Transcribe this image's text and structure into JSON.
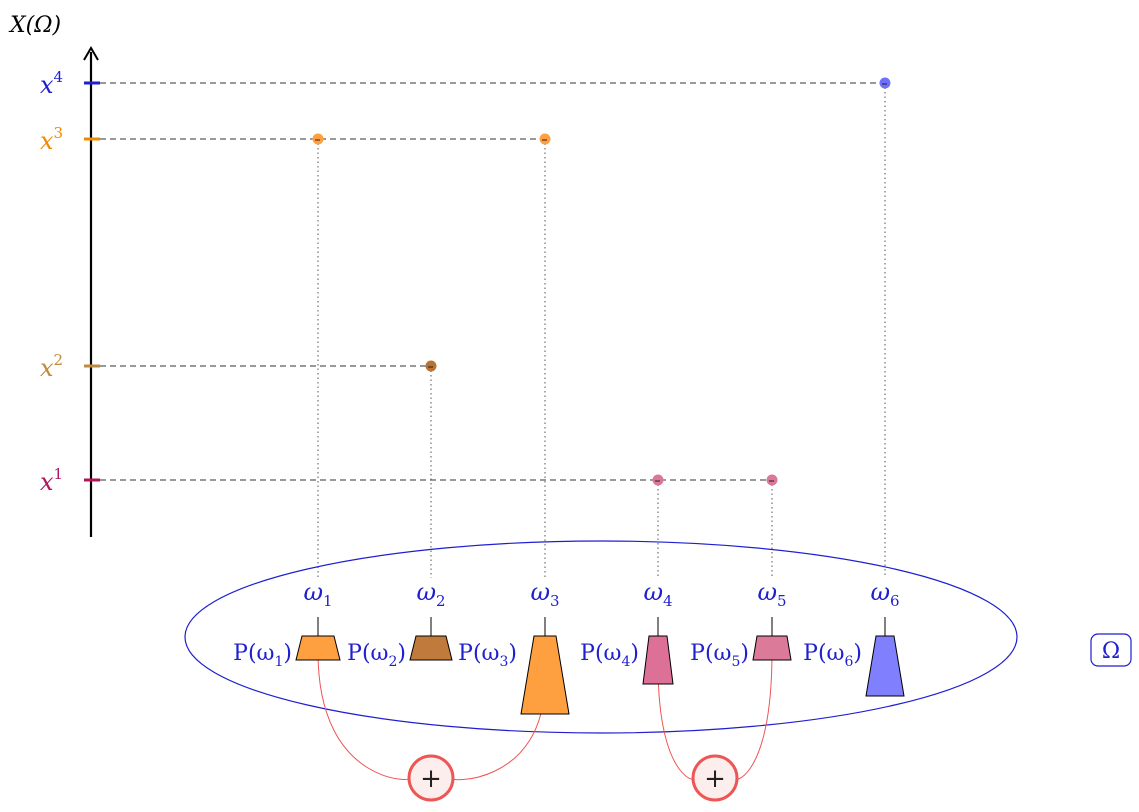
{
  "axis": {
    "label": "X(Ω)",
    "levels": [
      {
        "label": "x",
        "exp": "1",
        "color": "#b0145a",
        "points_color": "#d9789c"
      },
      {
        "label": "x",
        "exp": "2",
        "color": "#c08a3e",
        "points_color": "#b87333"
      },
      {
        "label": "x",
        "exp": "3",
        "color": "#f08a00",
        "points_color": "#ffa040"
      },
      {
        "label": "x",
        "exp": "4",
        "color": "#1f1fd0",
        "points_color": "#6f6fff"
      }
    ]
  },
  "sample_space": {
    "label": "Ω",
    "stroke": "#1f1fd0"
  },
  "outcomes": [
    {
      "name": "ω",
      "sub": "1",
      "value_level": 3,
      "prob_label": "P(ω",
      "prob_sub": "1",
      "fill": "#ffa040"
    },
    {
      "name": "ω",
      "sub": "2",
      "value_level": 2,
      "prob_label": "P(ω",
      "prob_sub": "2",
      "fill": "#c07b3c"
    },
    {
      "name": "ω",
      "sub": "3",
      "value_level": 3,
      "prob_label": "P(ω",
      "prob_sub": "3",
      "fill": "#ffa040"
    },
    {
      "name": "ω",
      "sub": "4",
      "value_level": 1,
      "prob_label": "P(ω",
      "prob_sub": "4",
      "fill": "#dc7096"
    },
    {
      "name": "ω",
      "sub": "5",
      "value_level": 1,
      "prob_label": "P(ω",
      "prob_sub": "5",
      "fill": "#dc7a9a"
    },
    {
      "name": "ω",
      "sub": "6",
      "value_level": 4,
      "prob_label": "P(ω",
      "prob_sub": "6",
      "fill": "#8080ff"
    }
  ],
  "sums": [
    {
      "symbol": "+",
      "joins": [
        1,
        3
      ]
    },
    {
      "symbol": "+",
      "joins": [
        4,
        5
      ]
    }
  ],
  "colors": {
    "sum_stroke": "#ee5555",
    "sum_fill": "#fdeeee",
    "ellipse": "#1f1fd0",
    "omega_text": "#1f1fd0"
  }
}
